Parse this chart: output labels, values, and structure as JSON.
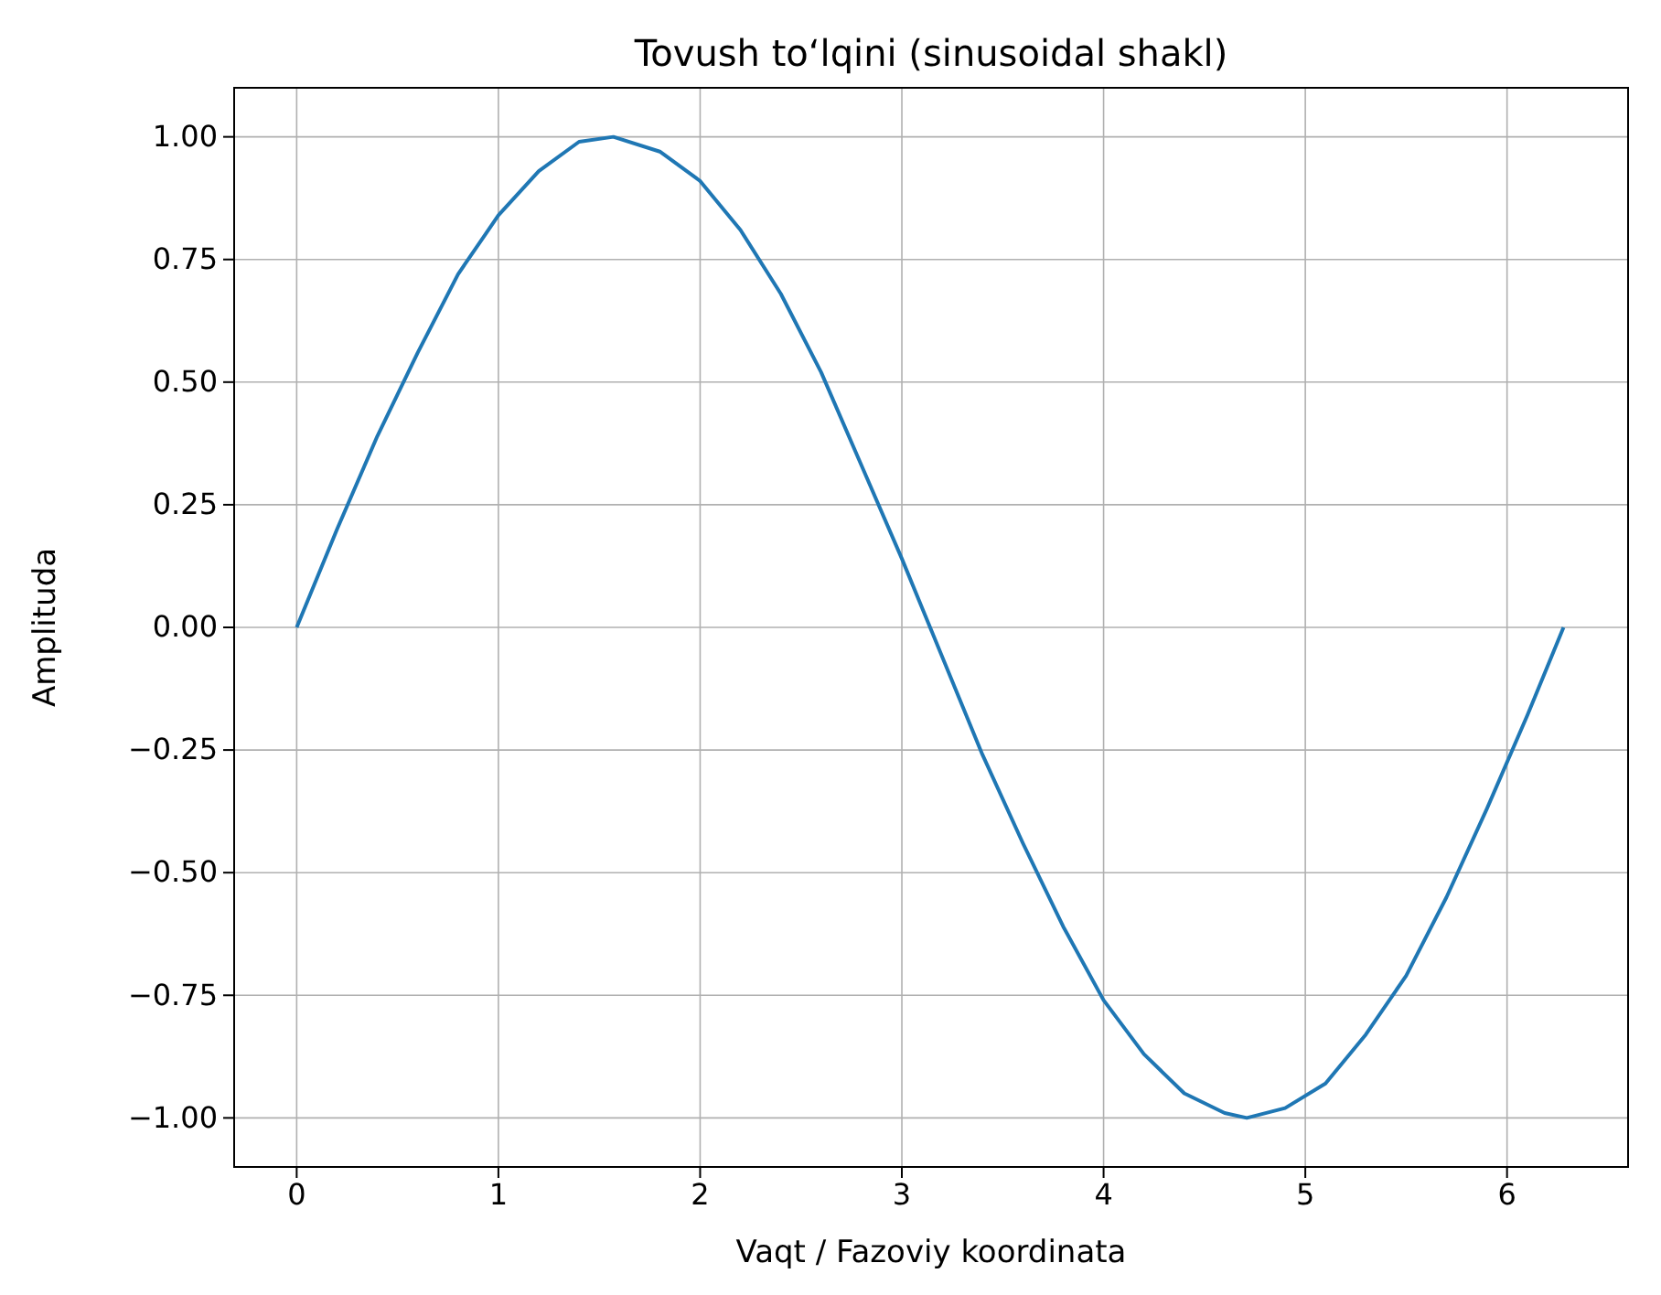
{
  "chart_data": {
    "type": "line",
    "title": "Tovush to‘lqini (sinusoidal shakl)",
    "xlabel": "Vaqt / Fazoviy koordinata",
    "ylabel": "Amplituda",
    "x": [
      0,
      0.2,
      0.4,
      0.6,
      0.8,
      1.0,
      1.2,
      1.4,
      1.57,
      1.8,
      2.0,
      2.2,
      2.4,
      2.6,
      2.8,
      3.0,
      3.14,
      3.4,
      3.6,
      3.8,
      4.0,
      4.2,
      4.4,
      4.6,
      4.71,
      4.9,
      5.1,
      5.3,
      5.5,
      5.7,
      5.9,
      6.1,
      6.28
    ],
    "series": [
      {
        "color": "#1f77b4",
        "values": [
          0,
          0.2,
          0.39,
          0.56,
          0.72,
          0.84,
          0.93,
          0.99,
          1.0,
          0.97,
          0.91,
          0.81,
          0.68,
          0.52,
          0.33,
          0.14,
          0,
          -0.26,
          -0.44,
          -0.61,
          -0.76,
          -0.87,
          -0.95,
          -0.99,
          -1.0,
          -0.98,
          -0.93,
          -0.83,
          -0.71,
          -0.55,
          -0.37,
          -0.18,
          0
        ]
      }
    ],
    "xlim": [
      -0.31,
      6.6
    ],
    "xticks": [
      0,
      1,
      2,
      3,
      4,
      5,
      6
    ],
    "ylim": [
      -1.1,
      1.1
    ],
    "yticks": [
      {
        "value": -1,
        "label": "−1.00"
      },
      {
        "value": -0.75,
        "label": "−0.75"
      },
      {
        "value": -0.5,
        "label": "−0.50"
      },
      {
        "value": -0.25,
        "label": "−0.25"
      },
      {
        "value": 0,
        "label": "0.00"
      },
      {
        "value": 0.25,
        "label": "0.25"
      },
      {
        "value": 0.5,
        "label": "0.50"
      },
      {
        "value": 0.75,
        "label": "0.75"
      },
      {
        "value": 1,
        "label": "1.00"
      }
    ],
    "grid": true,
    "line_style": "solid",
    "marker": "none"
  }
}
